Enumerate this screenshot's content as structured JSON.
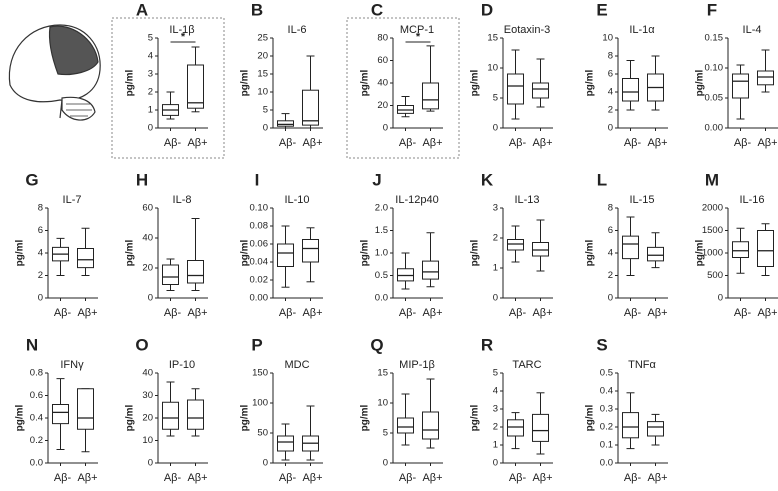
{
  "chart_data": [
    {
      "type": "box",
      "panel": "A",
      "title": "IL-1β",
      "ylabel": "pg/ml",
      "categories": [
        "Aβ-",
        "Aβ+"
      ],
      "boxes": [
        {
          "min": 0.5,
          "q1": 0.7,
          "median": 1.0,
          "q3": 1.3,
          "max": 2.0
        },
        {
          "min": 0.9,
          "q1": 1.1,
          "median": 1.4,
          "q3": 3.5,
          "max": 4.5
        }
      ],
      "ylim": [
        0,
        5
      ],
      "yticks": [
        0,
        1,
        2,
        3,
        4,
        5
      ],
      "annotation": "*",
      "highlight": true
    },
    {
      "type": "box",
      "panel": "B",
      "title": "IL-6",
      "ylabel": "pg/ml",
      "categories": [
        "Aβ-",
        "Aβ+"
      ],
      "boxes": [
        {
          "min": 0,
          "q1": 0.5,
          "median": 1,
          "q3": 2,
          "max": 4
        },
        {
          "min": 0,
          "q1": 0.8,
          "median": 2,
          "q3": 10.5,
          "max": 20
        }
      ],
      "ylim": [
        0,
        25
      ],
      "yticks": [
        0,
        5,
        10,
        15,
        20,
        25
      ]
    },
    {
      "type": "box",
      "panel": "C",
      "title": "MCP-1",
      "ylabel": "pg/ml",
      "categories": [
        "Aβ-",
        "Aβ+"
      ],
      "boxes": [
        {
          "min": 10,
          "q1": 13,
          "median": 16,
          "q3": 20,
          "max": 28
        },
        {
          "min": 15,
          "q1": 17,
          "median": 25,
          "q3": 40,
          "max": 73
        }
      ],
      "ylim": [
        0,
        80
      ],
      "yticks": [
        0,
        20,
        40,
        60,
        80
      ],
      "annotation": "*",
      "highlight": true
    },
    {
      "type": "box",
      "panel": "D",
      "title": "Eotaxin-3",
      "ylabel": "pg/ml",
      "categories": [
        "Aβ-",
        "Aβ+"
      ],
      "boxes": [
        {
          "min": 1.5,
          "q1": 4,
          "median": 7,
          "q3": 9,
          "max": 13
        },
        {
          "min": 3.5,
          "q1": 5,
          "median": 6.5,
          "q3": 7.5,
          "max": 11.5
        }
      ],
      "ylim": [
        0,
        15
      ],
      "yticks": [
        0,
        5,
        10,
        15
      ]
    },
    {
      "type": "box",
      "panel": "E",
      "title": "IL-1α",
      "ylabel": "pg/ml",
      "categories": [
        "Aβ-",
        "Aβ+"
      ],
      "boxes": [
        {
          "min": 2,
          "q1": 3,
          "median": 4,
          "q3": 5.5,
          "max": 7.5
        },
        {
          "min": 2,
          "q1": 3,
          "median": 4.5,
          "q3": 6,
          "max": 8
        }
      ],
      "ylim": [
        0,
        10
      ],
      "yticks": [
        0,
        2,
        4,
        6,
        8,
        10
      ]
    },
    {
      "type": "box",
      "panel": "F",
      "title": "IL-4",
      "ylabel": "pg/ml",
      "categories": [
        "Aβ-",
        "Aβ+"
      ],
      "boxes": [
        {
          "min": 0.015,
          "q1": 0.05,
          "median": 0.078,
          "q3": 0.09,
          "max": 0.105
        },
        {
          "min": 0.06,
          "q1": 0.072,
          "median": 0.085,
          "q3": 0.095,
          "max": 0.13
        }
      ],
      "ylim": [
        0,
        0.15
      ],
      "yticks": [
        {
          "value": 0,
          "label": "0.00"
        },
        0.05,
        {
          "value": 0.1,
          "label": "0.10"
        },
        0.15
      ]
    },
    {
      "type": "box",
      "panel": "G",
      "title": "IL-7",
      "ylabel": "pg/ml",
      "categories": [
        "Aβ-",
        "Aβ+"
      ],
      "boxes": [
        {
          "min": 2,
          "q1": 3.3,
          "median": 3.9,
          "q3": 4.5,
          "max": 5.3
        },
        {
          "min": 2,
          "q1": 2.7,
          "median": 3.4,
          "q3": 4.4,
          "max": 6.2
        }
      ],
      "ylim": [
        0,
        8
      ],
      "yticks": [
        0,
        2,
        4,
        6,
        8
      ]
    },
    {
      "type": "box",
      "panel": "H",
      "title": "IL-8",
      "ylabel": "pg/ml",
      "categories": [
        "Aβ-",
        "Aβ+"
      ],
      "boxes": [
        {
          "min": 5,
          "q1": 9,
          "median": 14,
          "q3": 22,
          "max": 26
        },
        {
          "min": 5,
          "q1": 10,
          "median": 15,
          "q3": 25,
          "max": 53
        }
      ],
      "ylim": [
        0,
        60
      ],
      "yticks": [
        0,
        20,
        40,
        60
      ]
    },
    {
      "type": "box",
      "panel": "I",
      "title": "IL-10",
      "ylabel": "pg/ml",
      "categories": [
        "Aβ-",
        "Aβ+"
      ],
      "boxes": [
        {
          "min": 0.012,
          "q1": 0.035,
          "median": 0.05,
          "q3": 0.06,
          "max": 0.08
        },
        {
          "min": 0.018,
          "q1": 0.04,
          "median": 0.055,
          "q3": 0.065,
          "max": 0.078
        }
      ],
      "ylim": [
        0,
        0.1
      ],
      "yticks": [
        {
          "value": 0,
          "label": "0.00"
        },
        0.02,
        0.04,
        0.06,
        0.08,
        {
          "value": 0.1,
          "label": "0.10"
        }
      ]
    },
    {
      "type": "box",
      "panel": "J",
      "title": "IL-12p40",
      "ylabel": "pg/ml",
      "categories": [
        "Aβ-",
        "Aβ+"
      ],
      "boxes": [
        {
          "min": 0.2,
          "q1": 0.38,
          "median": 0.5,
          "q3": 0.65,
          "max": 1.0
        },
        {
          "min": 0.25,
          "q1": 0.42,
          "median": 0.58,
          "q3": 0.82,
          "max": 1.45
        }
      ],
      "ylim": [
        0,
        2
      ],
      "yticks": [
        {
          "value": 0,
          "label": "0.0"
        },
        0.5,
        {
          "value": 1,
          "label": "1.0"
        },
        1.5,
        {
          "value": 2,
          "label": "2.0"
        }
      ]
    },
    {
      "type": "box",
      "panel": "K",
      "title": "IL-13",
      "ylabel": "pg/ml",
      "categories": [
        "Aβ-",
        "Aβ+"
      ],
      "boxes": [
        {
          "min": 1.2,
          "q1": 1.6,
          "median": 1.8,
          "q3": 1.95,
          "max": 2.4
        },
        {
          "min": 0.9,
          "q1": 1.4,
          "median": 1.6,
          "q3": 1.85,
          "max": 2.6
        }
      ],
      "ylim": [
        0,
        3
      ],
      "yticks": [
        0,
        1,
        2,
        3
      ]
    },
    {
      "type": "box",
      "panel": "L",
      "title": "IL-15",
      "ylabel": "pg/ml",
      "categories": [
        "Aβ-",
        "Aβ+"
      ],
      "boxes": [
        {
          "min": 2,
          "q1": 3.5,
          "median": 4.8,
          "q3": 5.5,
          "max": 7.2
        },
        {
          "min": 2.7,
          "q1": 3.3,
          "median": 3.8,
          "q3": 4.5,
          "max": 5.8
        }
      ],
      "ylim": [
        0,
        8
      ],
      "yticks": [
        0,
        2,
        4,
        6,
        8
      ]
    },
    {
      "type": "box",
      "panel": "M",
      "title": "IL-16",
      "ylabel": "pg/ml",
      "categories": [
        "Aβ-",
        "Aβ+"
      ],
      "boxes": [
        {
          "min": 550,
          "q1": 900,
          "median": 1050,
          "q3": 1250,
          "max": 1550
        },
        {
          "min": 500,
          "q1": 700,
          "median": 1050,
          "q3": 1500,
          "max": 1650
        }
      ],
      "ylim": [
        0,
        2000
      ],
      "yticks": [
        0,
        500,
        1000,
        1500,
        2000
      ]
    },
    {
      "type": "box",
      "panel": "N",
      "title": "IFNγ",
      "ylabel": "pg/ml",
      "categories": [
        "Aβ-",
        "Aβ+"
      ],
      "boxes": [
        {
          "min": 0.12,
          "q1": 0.35,
          "median": 0.45,
          "q3": 0.52,
          "max": 0.75
        },
        {
          "min": 0.1,
          "q1": 0.3,
          "median": 0.4,
          "q3": 0.66,
          "max": 0.66
        }
      ],
      "ylim": [
        0,
        0.8
      ],
      "yticks": [
        {
          "value": 0,
          "label": "0.0"
        },
        0.2,
        0.4,
        0.6,
        0.8
      ]
    },
    {
      "type": "box",
      "panel": "O",
      "title": "IP-10",
      "ylabel": "pg/ml",
      "categories": [
        "Aβ-",
        "Aβ+"
      ],
      "boxes": [
        {
          "min": 12,
          "q1": 15,
          "median": 20,
          "q3": 27,
          "max": 36
        },
        {
          "min": 12,
          "q1": 15,
          "median": 20,
          "q3": 28,
          "max": 33
        }
      ],
      "ylim": [
        0,
        40
      ],
      "yticks": [
        0,
        10,
        20,
        30,
        40
      ]
    },
    {
      "type": "box",
      "panel": "P",
      "title": "MDC",
      "ylabel": "pg/ml",
      "categories": [
        "Aβ-",
        "Aβ+"
      ],
      "boxes": [
        {
          "min": 5,
          "q1": 20,
          "median": 35,
          "q3": 45,
          "max": 65
        },
        {
          "min": 5,
          "q1": 20,
          "median": 33,
          "q3": 45,
          "max": 95
        }
      ],
      "ylim": [
        0,
        150
      ],
      "yticks": [
        0,
        50,
        100,
        150
      ]
    },
    {
      "type": "box",
      "panel": "Q",
      "title": "MIP-1β",
      "ylabel": "pg/ml",
      "categories": [
        "Aβ-",
        "Aβ+"
      ],
      "boxes": [
        {
          "min": 3,
          "q1": 5,
          "median": 6,
          "q3": 7.5,
          "max": 11.5
        },
        {
          "min": 2.5,
          "q1": 4,
          "median": 5.5,
          "q3": 8.5,
          "max": 14
        }
      ],
      "ylim": [
        0,
        15
      ],
      "yticks": [
        0,
        5,
        10,
        15
      ]
    },
    {
      "type": "box",
      "panel": "R",
      "title": "TARC",
      "ylabel": "pg/ml",
      "categories": [
        "Aβ-",
        "Aβ+"
      ],
      "boxes": [
        {
          "min": 0.8,
          "q1": 1.5,
          "median": 2,
          "q3": 2.4,
          "max": 2.8
        },
        {
          "min": 0.5,
          "q1": 1.2,
          "median": 1.8,
          "q3": 2.7,
          "max": 3.9
        }
      ],
      "ylim": [
        0,
        5
      ],
      "yticks": [
        0,
        1,
        2,
        3,
        4,
        5
      ]
    },
    {
      "type": "box",
      "panel": "S",
      "title": "TNFα",
      "ylabel": "pg/ml",
      "categories": [
        "Aβ-",
        "Aβ+"
      ],
      "boxes": [
        {
          "min": 0.08,
          "q1": 0.14,
          "median": 0.2,
          "q3": 0.28,
          "max": 0.39
        },
        {
          "min": 0.1,
          "q1": 0.15,
          "median": 0.2,
          "q3": 0.23,
          "max": 0.27
        }
      ],
      "ylim": [
        0,
        0.5
      ],
      "yticks": [
        {
          "value": 0,
          "label": "0.0"
        },
        0.1,
        0.2,
        0.3,
        0.4,
        0.5
      ]
    }
  ]
}
